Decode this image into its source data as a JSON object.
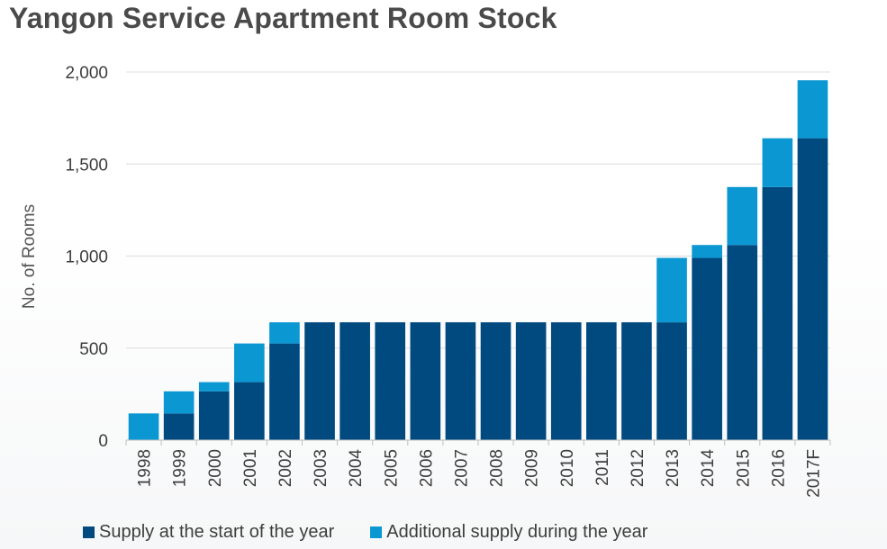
{
  "chart_data": {
    "type": "bar",
    "stacked": true,
    "title": "Yangon Service Apartment Room Stock",
    "ylabel": "No. of Rooms",
    "xlabel": "",
    "ylim": [
      0,
      2000
    ],
    "yticks": [
      "0",
      "500",
      "1,000",
      "1,500",
      "2,000"
    ],
    "ytick_values": [
      0,
      500,
      1000,
      1500,
      2000
    ],
    "grid": true,
    "legend_position": "bottom",
    "categories": [
      "1998",
      "1999",
      "2000",
      "2001",
      "2002",
      "2003",
      "2004",
      "2005",
      "2006",
      "2007",
      "2008",
      "2009",
      "2010",
      "2011",
      "2012",
      "2013",
      "2014",
      "2015",
      "2016",
      "2017F"
    ],
    "series": [
      {
        "name": "Supply at the start of the year",
        "color": "#004a80",
        "values": [
          0,
          145,
          265,
          315,
          525,
          640,
          640,
          640,
          640,
          640,
          640,
          640,
          640,
          640,
          640,
          640,
          990,
          1060,
          1375,
          1640
        ]
      },
      {
        "name": "Additional supply during the year",
        "color": "#0a97d2",
        "values": [
          145,
          120,
          50,
          210,
          115,
          0,
          0,
          0,
          0,
          0,
          0,
          0,
          0,
          0,
          0,
          350,
          70,
          315,
          265,
          315
        ]
      }
    ]
  }
}
